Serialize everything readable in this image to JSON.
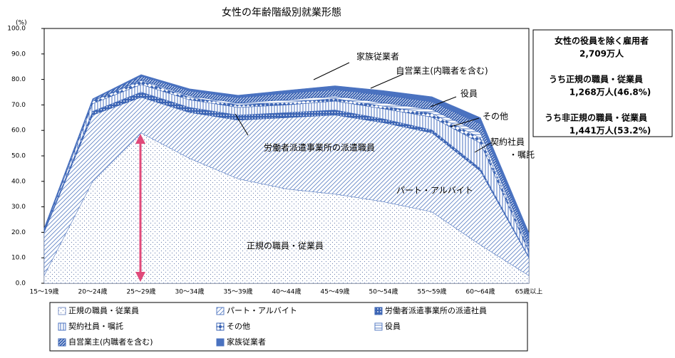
{
  "chart_data": {
    "type": "stacked_area",
    "title": "女性の年齢階級別就業形態",
    "y_unit": "(%)",
    "categories": [
      "15〜19歳",
      "20〜24歳",
      "25〜29歳",
      "30〜34歳",
      "35〜39歳",
      "40〜44歳",
      "45〜49歳",
      "50〜54歳",
      "55〜59歳",
      "60〜64歳",
      "65歳以上"
    ],
    "ylim": [
      0,
      100
    ],
    "yticks": [
      {
        "value": 0,
        "label": "0.0"
      },
      {
        "value": 10,
        "label": "10.0"
      },
      {
        "value": 20,
        "label": "20.0"
      },
      {
        "value": 30,
        "label": "30.0"
      },
      {
        "value": 40,
        "label": "40.0"
      },
      {
        "value": 50,
        "label": "50.0"
      },
      {
        "value": 60,
        "label": "60.0"
      },
      {
        "value": 70,
        "label": "70.0"
      },
      {
        "value": 80,
        "label": "80.0"
      },
      {
        "value": 90,
        "label": "90.0"
      },
      {
        "value": 100,
        "label": "100.0"
      }
    ],
    "series": [
      {
        "name": "正規の職員・従業員",
        "color": "#7f96c8",
        "values": [
          3,
          40,
          59,
          49,
          41,
          37,
          35,
          32,
          28,
          15,
          3
        ]
      },
      {
        "name": "パート・アルバイト",
        "color": "#5b7fc4",
        "values": [
          17,
          26,
          14,
          18,
          23,
          28,
          31,
          31,
          31,
          29,
          7
        ]
      },
      {
        "name": "労働者派遣事業所の派遣社員",
        "color": "#3b64b4",
        "values": [
          0.5,
          1.5,
          2,
          2,
          2,
          2,
          2,
          1.5,
          1.2,
          1,
          0.3
        ]
      },
      {
        "name": "契約社員・嘱託",
        "color": "#4a72c0",
        "values": [
          0.3,
          3,
          3,
          3,
          3,
          3,
          3.5,
          4,
          5,
          10,
          2
        ]
      },
      {
        "name": "その他",
        "color": "#3b64b4",
        "values": [
          0.5,
          1,
          1.5,
          1,
          1,
          1,
          1,
          1,
          1.5,
          2,
          1
        ]
      },
      {
        "name": "役員",
        "color": "#5b7fc4",
        "values": [
          0,
          0.1,
          0.3,
          0.5,
          0.8,
          1,
          1,
          1.3,
          1.5,
          2,
          1
        ]
      },
      {
        "name": "自営業主(内職者を含む)",
        "color": "#3b64b4",
        "values": [
          0.2,
          0.5,
          1.5,
          2,
          2,
          2.5,
          2.5,
          3,
          3,
          3.5,
          3
        ]
      },
      {
        "name": "家族従業者",
        "color": "#4a72c0",
        "values": [
          0.2,
          0.3,
          0.6,
          0.8,
          1,
          1.2,
          1.5,
          1.8,
          2,
          2.5,
          2.5
        ]
      }
    ],
    "annotations": [
      "家族従業者",
      "自営業主(内職者を含む)",
      "役員",
      "その他",
      "契約社員",
      "・嘱託",
      "労働者派遣事業所の派遣職員",
      "パート・アルバイト",
      "正規の職員・従業員"
    ],
    "side_note": [
      "女性の役員を除く雇用者",
      "2,709万人",
      "うち正規の職員・従業員",
      "1,268万人(46.8%)",
      "うち非正規の職員・従業員",
      "1,441万人(53.2%)"
    ]
  }
}
